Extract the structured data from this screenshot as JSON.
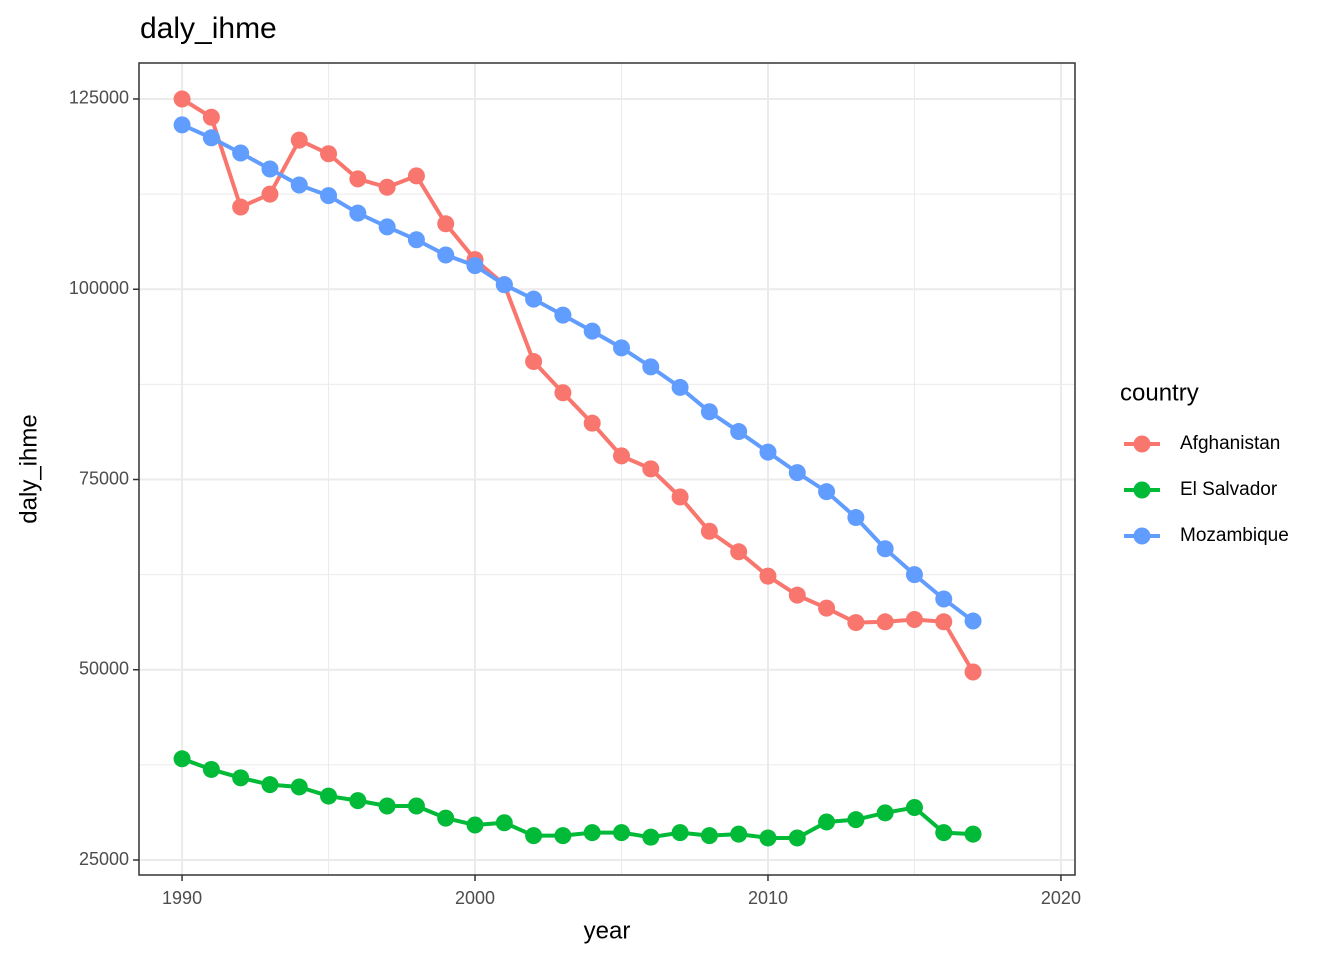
{
  "chart_data": {
    "type": "line",
    "title": "daly_ihme",
    "x_label": "year",
    "y_label": "daly_ihme",
    "legend_title": "country",
    "legend_position": "right",
    "grid": true,
    "x": [
      1990,
      1991,
      1992,
      1993,
      1994,
      1995,
      1996,
      1997,
      1998,
      1999,
      2000,
      2001,
      2002,
      2003,
      2004,
      2005,
      2006,
      2007,
      2008,
      2009,
      2010,
      2011,
      2012,
      2013,
      2014,
      2015,
      2016,
      2017
    ],
    "series": [
      {
        "name": "Afghanistan",
        "color": "#F8766D",
        "values": [
          125000,
          122600,
          110800,
          112500,
          119600,
          117800,
          114500,
          113400,
          114900,
          108600,
          103900,
          100600,
          90500,
          86400,
          82400,
          78100,
          76400,
          72700,
          68200,
          65500,
          62300,
          59800,
          58100,
          56200,
          56300,
          56600,
          56300,
          49700
        ]
      },
      {
        "name": "El Salvador",
        "color": "#00BA38",
        "values": [
          38300,
          36900,
          35800,
          34900,
          34600,
          33400,
          32800,
          32100,
          32100,
          30500,
          29600,
          29900,
          28200,
          28200,
          28600,
          28600,
          28000,
          28600,
          28200,
          28400,
          27900,
          27900,
          30000,
          30300,
          31200,
          31900,
          28600,
          28400
        ]
      },
      {
        "name": "Mozambique",
        "color": "#619CFF",
        "values": [
          121600,
          119900,
          117900,
          115800,
          113700,
          112300,
          110000,
          108200,
          106500,
          104500,
          103100,
          100600,
          98700,
          96600,
          94500,
          92300,
          89800,
          87100,
          83900,
          81300,
          78600,
          75900,
          73400,
          70000,
          65900,
          62500,
          59300,
          56400
        ]
      }
    ],
    "xlim": [
      1988.53,
      2020.48
    ],
    "xticks": [
      1990,
      2000,
      2010,
      2020
    ],
    "x_minor_grid": [
      1995,
      2005,
      2015
    ],
    "ylim": [
      23030,
      129730
    ],
    "yticks": [
      25000,
      50000,
      75000,
      100000,
      125000
    ],
    "y_minor_grid": [
      37500,
      62500,
      87500,
      112500
    ]
  }
}
